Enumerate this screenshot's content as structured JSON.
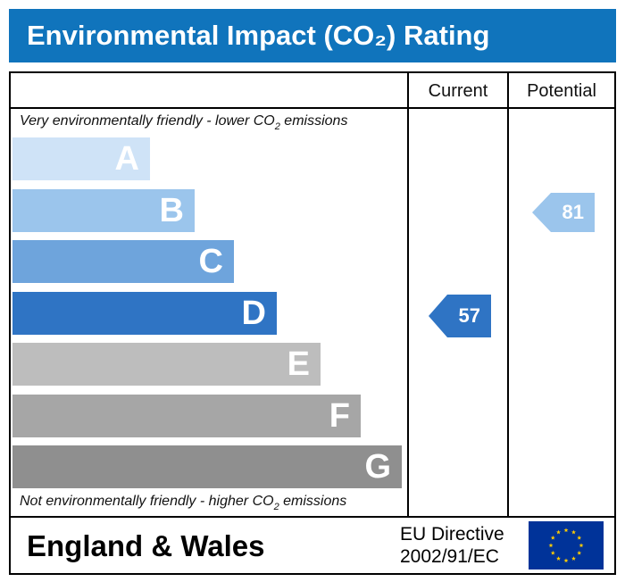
{
  "header": {
    "title": "Environmental Impact (CO₂) Rating",
    "color": "#1074bc"
  },
  "columns": {
    "current": "Current",
    "potential": "Potential"
  },
  "notes": {
    "top_prefix": "Very environmentally friendly - lower CO",
    "top_sub": "2",
    "top_suffix": " emissions",
    "bottom_prefix": "Not environmentally friendly - higher CO",
    "bottom_sub": "2",
    "bottom_suffix": " emissions"
  },
  "bands": [
    {
      "letter": "A",
      "color": "#cfe3f7"
    },
    {
      "letter": "B",
      "color": "#9bc5ec"
    },
    {
      "letter": "C",
      "color": "#6ea4dc"
    },
    {
      "letter": "D",
      "color": "#2f74c4"
    },
    {
      "letter": "E",
      "color": "#bdbdbd"
    },
    {
      "letter": "F",
      "color": "#a6a6a6"
    },
    {
      "letter": "G",
      "color": "#8f8f8f"
    }
  ],
  "ratings": {
    "current": {
      "value": "57",
      "band": "D",
      "color": "#2f74c4"
    },
    "potential": {
      "value": "81",
      "band": "B",
      "color": "#9bc5ec"
    }
  },
  "footer": {
    "region": "England & Wales",
    "directive_line1": "EU Directive",
    "directive_line2": "2002/91/EC",
    "flag_color": "#003399",
    "star_color": "#ffcc00"
  }
}
